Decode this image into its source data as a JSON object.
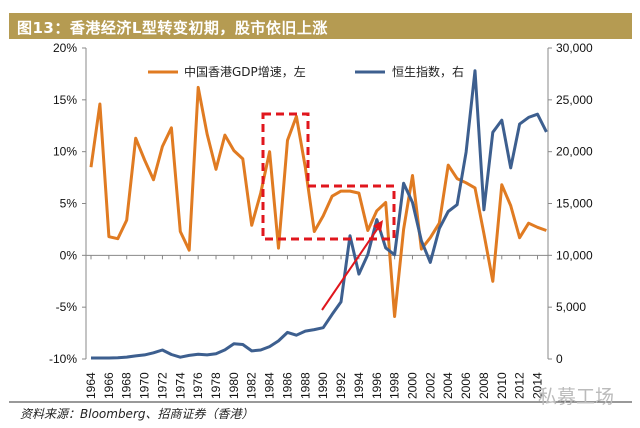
{
  "header": {
    "title": "图13：香港经济L型转变初期，股市依旧上涨"
  },
  "footer": {
    "source": "资料来源：Bloomberg、招商证券（香港）",
    "watermark": "私募工场"
  },
  "chart_data": {
    "type": "line",
    "title": "",
    "x": [
      1964,
      1965,
      1966,
      1967,
      1968,
      1969,
      1970,
      1971,
      1972,
      1973,
      1974,
      1975,
      1976,
      1977,
      1978,
      1979,
      1980,
      1981,
      1982,
      1983,
      1984,
      1985,
      1986,
      1987,
      1988,
      1989,
      1990,
      1991,
      1992,
      1993,
      1994,
      1995,
      1996,
      1997,
      1998,
      1999,
      2000,
      2001,
      2002,
      2003,
      2004,
      2005,
      2006,
      2007,
      2008,
      2009,
      2010,
      2011,
      2012,
      2013,
      2014,
      2015
    ],
    "x_tick_labels": [
      "1964",
      "1966",
      "1968",
      "1970",
      "1972",
      "1974",
      "1976",
      "1978",
      "1980",
      "1982",
      "1984",
      "1986",
      "1988",
      "1990",
      "1992",
      "1994",
      "1996",
      "1998",
      "2000",
      "2002",
      "2004",
      "2006",
      "2008",
      "2010",
      "2012",
      "2014"
    ],
    "series": [
      {
        "name": "中国香港GDP增速，左",
        "axis": "left",
        "color": "#e07b22",
        "values": [
          8.5,
          14.6,
          1.8,
          1.6,
          3.4,
          11.3,
          9.2,
          7.3,
          10.5,
          12.3,
          2.3,
          0.5,
          16.2,
          11.7,
          8.3,
          11.6,
          10.1,
          9.3,
          2.9,
          6.0,
          10.0,
          0.7,
          11.1,
          13.4,
          8.5,
          2.3,
          3.8,
          5.7,
          6.2,
          6.2,
          6.0,
          2.4,
          4.3,
          5.1,
          -5.9,
          2.5,
          7.7,
          0.6,
          1.7,
          3.1,
          8.7,
          7.4,
          7.0,
          6.5,
          2.1,
          -2.5,
          6.8,
          4.8,
          1.7,
          3.1,
          2.7,
          2.4
        ]
      },
      {
        "name": "恒生指数，右",
        "axis": "right",
        "color": "#3d5f8f",
        "values": [
          100,
          100,
          100,
          120,
          180,
          300,
          400,
          600,
          870,
          430,
          170,
          350,
          450,
          400,
          500,
          880,
          1470,
          1400,
          780,
          870,
          1200,
          1750,
          2570,
          2300,
          2690,
          2840,
          3020,
          4300,
          5510,
          11890,
          8190,
          10070,
          13450,
          10720,
          10050,
          16960,
          15100,
          11400,
          9320,
          12580,
          14230,
          14880,
          19960,
          27810,
          14390,
          21870,
          23040,
          18430,
          22660,
          23310,
          23610,
          21910
        ]
      }
    ],
    "y_left": {
      "range": [
        -10,
        20
      ],
      "ticks": [
        "-10%",
        "-5%",
        "0%",
        "5%",
        "10%",
        "15%",
        "20%"
      ]
    },
    "y_right": {
      "range": [
        0,
        30000
      ],
      "ticks": [
        "0",
        "5,000",
        "10,000",
        "15,000",
        "20,000",
        "25,000",
        "30,000"
      ]
    },
    "legend": "top-center",
    "grid": false,
    "annotations": {
      "highlight_box_color": "#e0161d",
      "arrow_color": "#e0161d"
    }
  }
}
